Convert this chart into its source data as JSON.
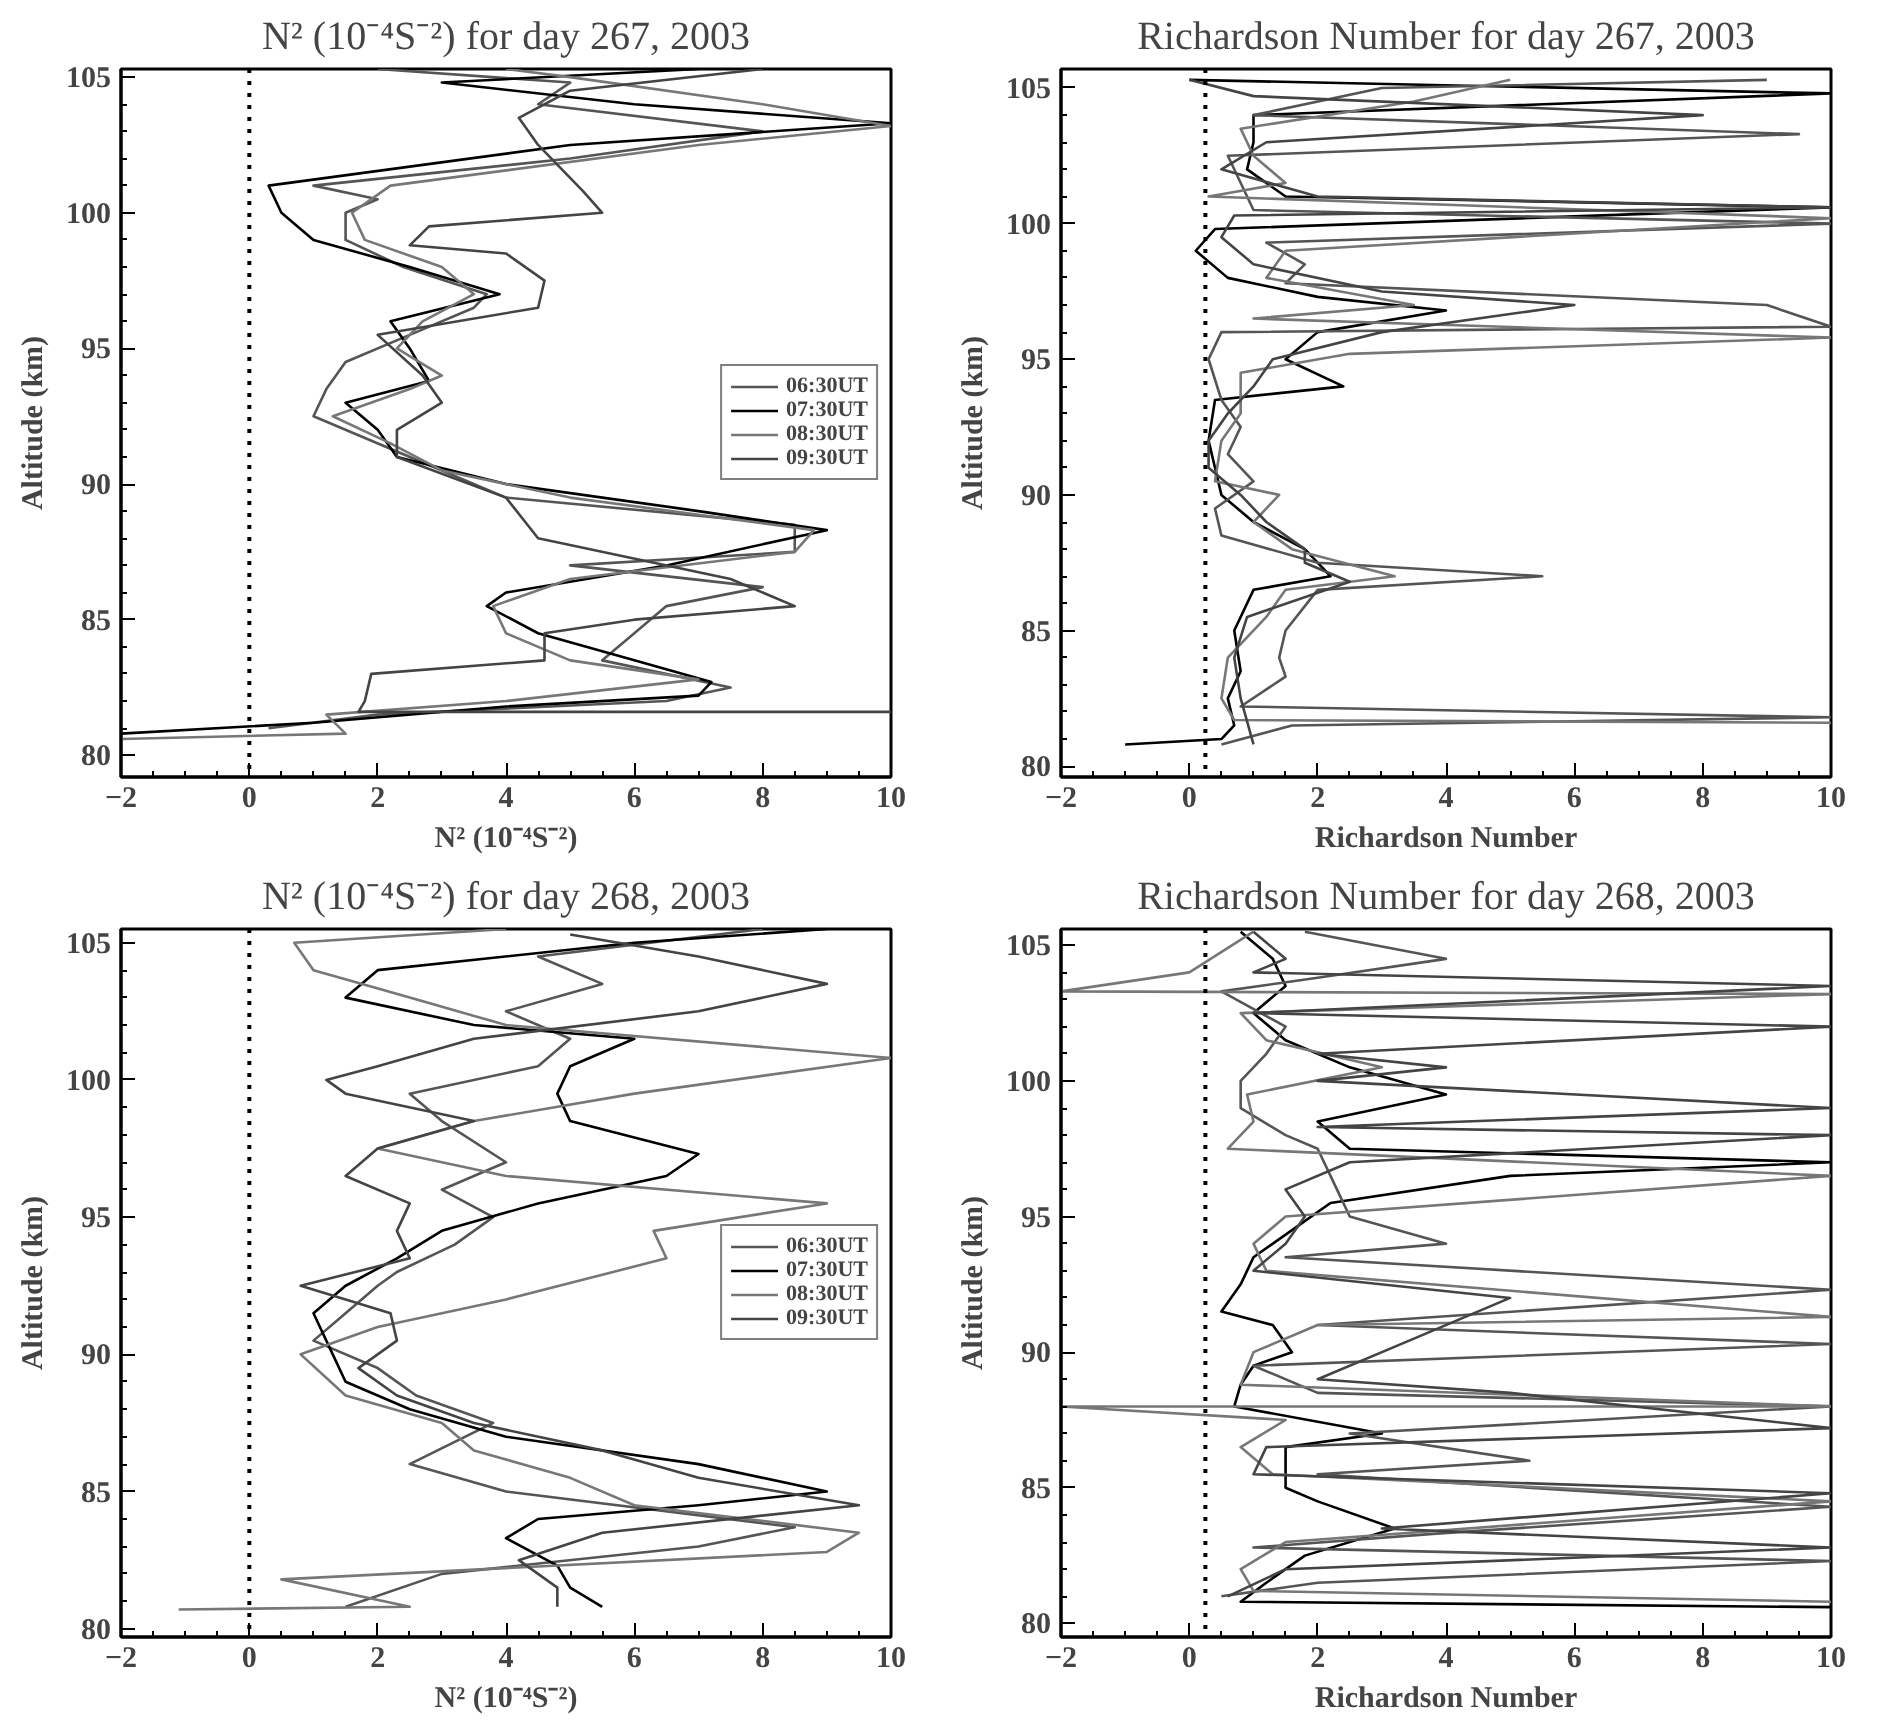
{
  "chart_data": [
    {
      "type": "line",
      "title": "N² (10⁻⁴S⁻²) for day 267, 2003",
      "xlabel": "N² (10⁻⁴S⁻²)",
      "ylabel": "Altitude (km)",
      "xlim": [
        -2,
        10
      ],
      "ylim": [
        79.2,
        105.3
      ],
      "xticks": [
        -2,
        0,
        2,
        4,
        6,
        8,
        10
      ],
      "yticks": [
        80,
        85,
        90,
        95,
        100,
        105
      ],
      "legend": "right",
      "ref_lines": [
        {
          "axis": "x",
          "value": 0,
          "line_style": "dotted",
          "color": "#000000"
        }
      ],
      "series": [
        {
          "name": "06:30UT",
          "color": "#555555",
          "x": [
            0.3,
            2,
            6.5,
            7.5,
            5.5,
            6,
            6.5,
            8,
            5,
            8.5,
            8.5,
            4,
            3,
            1,
            1.2,
            1.5,
            2.5,
            3.5,
            3.7,
            2.4,
            1.5,
            1.5,
            2,
            1,
            5,
            8,
            4.5,
            5,
            2
          ],
          "values": [
            81,
            81.5,
            82,
            82.5,
            83.5,
            84.5,
            85.5,
            86.2,
            87,
            87.5,
            88.5,
            89.5,
            90.5,
            92.5,
            93.5,
            94.5,
            95.5,
            96.5,
            97,
            98,
            99,
            100,
            100.5,
            101,
            102,
            103,
            104,
            104.8,
            105.3
          ]
        },
        {
          "name": "07:30UT",
          "color": "#000000",
          "x": [
            -2,
            1.0,
            4,
            7,
            7.2,
            6,
            4.5,
            3.7,
            4.0,
            6.5,
            9,
            7,
            4,
            2.3,
            2,
            1.5,
            2.8,
            2.5,
            2.2,
            3.9,
            2.5,
            1.0,
            0.5,
            0.3,
            5,
            10,
            6,
            3,
            7
          ],
          "values": [
            80.8,
            81.2,
            81.8,
            82.2,
            82.7,
            83.5,
            84.5,
            85.5,
            86,
            87,
            88.3,
            89,
            90,
            91,
            92,
            93,
            93.8,
            95,
            96,
            97,
            98,
            99,
            100,
            101,
            102.5,
            103.3,
            104,
            104.8,
            105.3
          ]
        },
        {
          "name": "08:30UT",
          "color": "#777777",
          "x": [
            -2,
            1.5,
            1.2,
            4,
            7,
            5,
            4,
            3.8,
            5,
            8.5,
            8.8,
            5,
            3,
            2.2,
            1.3,
            2.5,
            3,
            2.3,
            2.7,
            3.5,
            3.0,
            1.8,
            1.6,
            2.2,
            7,
            10,
            8,
            5,
            4
          ],
          "values": [
            80.6,
            80.8,
            81.5,
            82,
            82.8,
            83.5,
            84.5,
            85.5,
            86.5,
            87.5,
            88.3,
            89.5,
            90.5,
            91.5,
            92.5,
            93.5,
            94,
            95,
            96,
            97,
            98,
            99,
            100,
            101,
            102.5,
            103.2,
            104,
            105,
            105.3
          ]
        },
        {
          "name": "09:30UT",
          "color": "#444444",
          "x": [
            10,
            1.7,
            1.8,
            1.9,
            4.6,
            4.6,
            6,
            8.5,
            7.5,
            4.5,
            4,
            2.3,
            2.3,
            3.0,
            2.7,
            2.0,
            4.5,
            4.6,
            4.0,
            2.5,
            2.8,
            5.5,
            5.2,
            4.5,
            4.2,
            5,
            8
          ],
          "values": [
            81.6,
            81.6,
            82,
            83,
            83.5,
            84.5,
            85,
            85.5,
            86.5,
            88,
            89.5,
            91,
            92,
            93,
            94,
            95.5,
            96.5,
            97.5,
            98.5,
            98.8,
            99.5,
            100,
            100.8,
            102.5,
            103.5,
            104.5,
            105.3
          ]
        }
      ]
    },
    {
      "type": "line",
      "title": "Richardson Number for day 267, 2003",
      "xlabel": "Richardson Number",
      "ylabel": "Altitude (km)",
      "xlim": [
        -2,
        10
      ],
      "ylim": [
        79.6,
        105.7
      ],
      "xticks": [
        -2,
        0,
        2,
        4,
        6,
        8,
        10
      ],
      "yticks": [
        80,
        85,
        90,
        95,
        100,
        105
      ],
      "ref_lines": [
        {
          "axis": "x",
          "value": 0.25,
          "line_style": "dotted",
          "color": "#000000"
        }
      ],
      "series": [
        {
          "color": "#000000",
          "x": [
            -1,
            0.5,
            0.7,
            0.6,
            0.8,
            0.7,
            1.0,
            2.2,
            1.8,
            1.0,
            0.5,
            0.4,
            0.3,
            0.4,
            2.4,
            1.5,
            2.0,
            4,
            2,
            0.6,
            0.1,
            0.4,
            10,
            1.5,
            0.9,
            1.0,
            1.0,
            10,
            0
          ],
          "values": [
            80.8,
            81,
            81.5,
            82.5,
            83.5,
            85,
            86.5,
            87,
            88,
            89,
            90,
            91,
            92,
            93.5,
            94,
            95,
            96,
            96.8,
            97.3,
            98,
            99,
            99.8,
            100.6,
            101,
            102,
            103,
            104,
            104.8,
            105.3
          ]
        },
        {
          "color": "#555555",
          "x": [
            0.5,
            1.6,
            10,
            0.8,
            1.5,
            1.4,
            1.5,
            2,
            5.5,
            2,
            0.5,
            0.4,
            1,
            0.6,
            0.8,
            0.5,
            0.3,
            0.5,
            10,
            9,
            1.5,
            1.8,
            1.2,
            10,
            1,
            0.6,
            9.5,
            1,
            3,
            9
          ],
          "values": [
            80.8,
            81.5,
            81.8,
            82.2,
            83.3,
            84,
            85,
            86.5,
            87,
            87.5,
            88.5,
            89.5,
            90.5,
            91.5,
            92.5,
            93.5,
            95,
            96,
            96.2,
            97,
            97.8,
            98.5,
            99.3,
            100,
            100.5,
            102.5,
            103.3,
            104,
            105,
            105.3
          ]
        },
        {
          "color": "#777777",
          "x": [
            10,
            0.7,
            0.5,
            0.6,
            1.2,
            1.5,
            3.2,
            1.6,
            1.0,
            1.4,
            0.4,
            0.5,
            0.8,
            0.8,
            2.5,
            10,
            1.0,
            3.5,
            1.2,
            1.5,
            10,
            0.3,
            1.5,
            1,
            0.8,
            3.5,
            5
          ],
          "values": [
            81.6,
            81.7,
            82.5,
            84,
            85.5,
            86.5,
            87,
            88,
            89,
            90,
            90.5,
            92,
            93,
            94.5,
            95.2,
            95.8,
            96.5,
            97,
            98,
            99,
            100.2,
            101,
            101.5,
            102.5,
            103.5,
            104.5,
            105.3
          ]
        },
        {
          "color": "#444444",
          "x": [
            1,
            0.8,
            0.7,
            0.9,
            2.5,
            1.8,
            1.8,
            1.2,
            0.8,
            0.3,
            0.3,
            0.6,
            1,
            1.3,
            3,
            6,
            3,
            1,
            0.5,
            0.7,
            10,
            2,
            0.5,
            1.2,
            8,
            1,
            0
          ],
          "values": [
            80.8,
            82.5,
            84,
            85.5,
            86.8,
            87.5,
            88,
            89,
            90,
            91,
            92,
            93,
            94,
            95,
            96,
            97,
            97.5,
            98.5,
            99.5,
            100.3,
            100.6,
            101,
            102,
            103,
            104,
            104.7,
            105.3
          ]
        }
      ]
    },
    {
      "type": "line",
      "title": "N² (10⁻⁴S⁻²) for day 268, 2003",
      "xlabel": "N² (10⁻⁴S⁻²)",
      "ylabel": "Altitude (km)",
      "xlim": [
        -2,
        10
      ],
      "ylim": [
        79.7,
        105.5
      ],
      "xticks": [
        -2,
        0,
        2,
        4,
        6,
        8,
        10
      ],
      "yticks": [
        80,
        85,
        90,
        95,
        100,
        105
      ],
      "legend": "right",
      "ref_lines": [
        {
          "axis": "x",
          "value": 0,
          "line_style": "dotted",
          "color": "#000000"
        }
      ],
      "series": [
        {
          "name": "06:30UT",
          "color": "#555555",
          "x": [
            1.5,
            3,
            7,
            8.5,
            4,
            2.5,
            3.8,
            2.6,
            2,
            1.0,
            1.5,
            2,
            2.3,
            3.2,
            3.8,
            3,
            4,
            3,
            2.5,
            4.5,
            5,
            4,
            5.5,
            4.5,
            8
          ],
          "values": [
            80.8,
            82,
            83,
            83.7,
            85,
            86,
            87.5,
            88.5,
            89.5,
            90.5,
            91.5,
            92.5,
            93,
            94,
            95,
            96,
            97,
            98.5,
            99.5,
            100.5,
            101.5,
            102.5,
            103.5,
            104.5,
            105.5
          ]
        },
        {
          "name": "07:30UT",
          "color": "#000000",
          "x": [
            5.5,
            5,
            4.8,
            4,
            4.5,
            7,
            9,
            7,
            4,
            2.5,
            1.5,
            1.3,
            1,
            1.5,
            2.3,
            3,
            4.5,
            6.5,
            7,
            5,
            4.8,
            5,
            6,
            3.5,
            1.5,
            2,
            6,
            9
          ],
          "values": [
            80.8,
            81.5,
            82.3,
            83.3,
            84,
            84.5,
            85,
            86,
            87,
            88,
            89,
            90,
            91.5,
            92.5,
            93.5,
            94.5,
            95.5,
            96.5,
            97.3,
            98.5,
            99.5,
            100.5,
            101.5,
            102,
            103,
            104,
            105,
            105.5
          ]
        },
        {
          "name": "08:30UT",
          "color": "#777777",
          "x": [
            -1.1,
            2.5,
            0.5,
            9,
            9.5,
            6,
            5,
            3.5,
            3,
            1.5,
            0.8,
            2,
            4,
            6.5,
            6.3,
            9,
            4,
            2,
            3.5,
            6,
            10,
            4,
            2.5,
            1,
            0.7,
            4
          ],
          "values": [
            80.7,
            80.8,
            81.8,
            82.8,
            83.5,
            84.5,
            85.5,
            86.5,
            87.5,
            88.5,
            90,
            91,
            92,
            93.5,
            94.5,
            95.5,
            96.5,
            97.5,
            98.5,
            99.5,
            100.8,
            102,
            103,
            104,
            105,
            105.5
          ]
        },
        {
          "name": "09:30UT",
          "color": "#444444",
          "x": [
            4.8,
            4.8,
            4.2,
            5.5,
            9.5,
            7,
            5.5,
            3.5,
            2.3,
            1.7,
            2.3,
            2.2,
            0.8,
            2.5,
            2.3,
            2.5,
            1.5,
            2,
            3.5,
            1.5,
            1.2,
            2,
            3.5,
            7,
            9,
            7,
            5
          ],
          "values": [
            80.8,
            81.5,
            82.5,
            83.5,
            84.5,
            85.5,
            86.5,
            87.5,
            88.5,
            89.5,
            90.5,
            91.5,
            92.5,
            93.5,
            94.5,
            95.5,
            96.5,
            97.5,
            98.5,
            99.5,
            100,
            100.5,
            101.5,
            102.5,
            103.5,
            104.5,
            105.3
          ]
        }
      ]
    },
    {
      "type": "line",
      "title": "Richardson Number for day 268, 2003",
      "xlabel": "Richardson Number",
      "ylabel": "Altitude (km)",
      "xlim": [
        -2,
        10
      ],
      "ylim": [
        79.5,
        105.6
      ],
      "xticks": [
        -2,
        0,
        2,
        4,
        6,
        8,
        10
      ],
      "yticks": [
        80,
        85,
        90,
        95,
        100,
        105
      ],
      "ref_lines": [
        {
          "axis": "x",
          "value": 0.25,
          "line_style": "dotted",
          "color": "#000000"
        }
      ],
      "series": [
        {
          "color": "#000000",
          "x": [
            10,
            0.8,
            1.2,
            1.8,
            3.2,
            2,
            1.5,
            1.5,
            1.5,
            3,
            0.7,
            0.8,
            1.0,
            1.6,
            1.3,
            0.5,
            0.8,
            1,
            1.6,
            2.2,
            5,
            10,
            2.5,
            2,
            4,
            2.5,
            1.5,
            1,
            1.5,
            1.3,
            0.8
          ],
          "values": [
            80.6,
            80.8,
            81.5,
            82.5,
            83.5,
            84.5,
            85,
            85.5,
            86.5,
            87,
            88,
            88.8,
            89.5,
            90,
            91,
            91.5,
            92.5,
            93.5,
            94.5,
            95.5,
            96.5,
            97,
            97.5,
            98.5,
            99.5,
            100.5,
            101.5,
            102.5,
            103.5,
            104.5,
            105.5
          ]
        },
        {
          "color": "#555555",
          "x": [
            0.5,
            2,
            10,
            1,
            3.8,
            10,
            2,
            5.3,
            2.5,
            10,
            2,
            1,
            10,
            2,
            10,
            1.5,
            4,
            2.5,
            2.3,
            2,
            1.5,
            0.8,
            0.8,
            1.2,
            1.5,
            0.5,
            2,
            4,
            1.8
          ],
          "values": [
            81,
            81.5,
            82.3,
            82.8,
            83.3,
            84.3,
            85.5,
            86,
            87,
            88,
            88.5,
            89.5,
            90.3,
            91,
            92.3,
            93.5,
            94,
            95,
            96,
            97.5,
            98,
            99,
            100,
            101,
            102,
            103.3,
            103.8,
            104.5,
            105.5
          ]
        },
        {
          "color": "#777777",
          "x": [
            10,
            1,
            0.8,
            1.5,
            10,
            1.3,
            0.8,
            1.5,
            -2,
            10,
            0.8,
            1,
            2,
            10,
            1.2,
            1,
            1.5,
            10,
            0.6,
            1,
            0.9,
            3,
            1.2,
            0.8,
            10,
            -2,
            0,
            1
          ],
          "values": [
            80.8,
            81.2,
            82,
            83,
            84.5,
            85.5,
            86.5,
            87.5,
            88,
            88,
            88.8,
            90,
            91,
            91.3,
            93,
            94,
            95,
            96.5,
            97.5,
            98.5,
            99.5,
            100.5,
            101.5,
            102.5,
            103.2,
            103.3,
            104,
            105.5
          ]
        },
        {
          "color": "#444444",
          "x": [
            0.6,
            1.5,
            10,
            3,
            10,
            1,
            1.2,
            10,
            5,
            2,
            3.5,
            5,
            1,
            1.5,
            1.8,
            1.5,
            2.5,
            10,
            2,
            10,
            2,
            4,
            2,
            10,
            1,
            10,
            1,
            1.5,
            1
          ],
          "values": [
            81,
            82,
            82.8,
            83.5,
            84.8,
            85.5,
            86.5,
            87.2,
            88.5,
            89,
            90.5,
            92,
            93,
            94,
            95,
            96,
            97,
            98,
            98.3,
            99,
            100,
            100.5,
            101,
            102,
            102.5,
            103.5,
            104,
            104.5,
            105.5
          ]
        }
      ]
    }
  ]
}
